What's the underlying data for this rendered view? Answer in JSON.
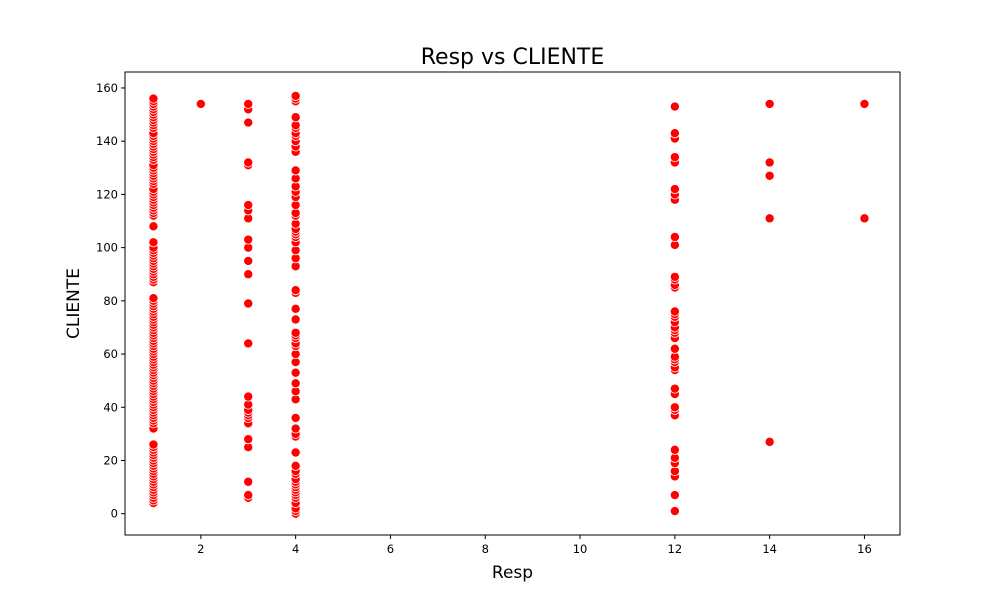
{
  "chart_data": {
    "type": "scatter",
    "title": "Resp vs CLIENTE",
    "xlabel": "Resp",
    "ylabel": "CLIENTE",
    "xlim": [
      0.4,
      16.75
    ],
    "ylim": [
      -8,
      166
    ],
    "xticks": [
      2,
      4,
      6,
      8,
      10,
      12,
      14,
      16
    ],
    "yticks": [
      0,
      20,
      40,
      60,
      80,
      100,
      120,
      140,
      160
    ],
    "grid": false,
    "legend": "none",
    "marker_color": "#ff0000",
    "marker_edge": "#ffffff",
    "series": [
      {
        "points": [
          [
            1,
            4
          ],
          [
            1,
            5
          ],
          [
            1,
            6
          ],
          [
            1,
            7
          ],
          [
            1,
            8
          ],
          [
            1,
            9
          ],
          [
            1,
            10
          ],
          [
            1,
            11
          ],
          [
            1,
            12
          ],
          [
            1,
            13
          ],
          [
            1,
            14
          ],
          [
            1,
            15
          ],
          [
            1,
            16
          ],
          [
            1,
            17
          ],
          [
            1,
            18
          ],
          [
            1,
            19
          ],
          [
            1,
            20
          ],
          [
            1,
            21
          ],
          [
            1,
            22
          ],
          [
            1,
            23
          ],
          [
            1,
            24
          ],
          [
            1,
            25
          ],
          [
            1,
            26
          ],
          [
            1,
            32
          ],
          [
            1,
            34
          ],
          [
            1,
            35
          ],
          [
            1,
            36
          ],
          [
            1,
            37
          ],
          [
            1,
            38
          ],
          [
            1,
            39
          ],
          [
            1,
            40
          ],
          [
            1,
            41
          ],
          [
            1,
            42
          ],
          [
            1,
            43
          ],
          [
            1,
            44
          ],
          [
            1,
            45
          ],
          [
            1,
            46
          ],
          [
            1,
            47
          ],
          [
            1,
            48
          ],
          [
            1,
            49
          ],
          [
            1,
            50
          ],
          [
            1,
            51
          ],
          [
            1,
            52
          ],
          [
            1,
            53
          ],
          [
            1,
            54
          ],
          [
            1,
            55
          ],
          [
            1,
            56
          ],
          [
            1,
            57
          ],
          [
            1,
            58
          ],
          [
            1,
            59
          ],
          [
            1,
            60
          ],
          [
            1,
            61
          ],
          [
            1,
            62
          ],
          [
            1,
            63
          ],
          [
            1,
            64
          ],
          [
            1,
            65
          ],
          [
            1,
            66
          ],
          [
            1,
            67
          ],
          [
            1,
            68
          ],
          [
            1,
            69
          ],
          [
            1,
            70
          ],
          [
            1,
            71
          ],
          [
            1,
            72
          ],
          [
            1,
            73
          ],
          [
            1,
            74
          ],
          [
            1,
            75
          ],
          [
            1,
            76
          ],
          [
            1,
            77
          ],
          [
            1,
            78
          ],
          [
            1,
            79
          ],
          [
            1,
            80
          ],
          [
            1,
            81
          ],
          [
            1,
            87
          ],
          [
            1,
            88
          ],
          [
            1,
            89
          ],
          [
            1,
            90
          ],
          [
            1,
            91
          ],
          [
            1,
            92
          ],
          [
            1,
            93
          ],
          [
            1,
            94
          ],
          [
            1,
            95
          ],
          [
            1,
            96
          ],
          [
            1,
            97
          ],
          [
            1,
            98
          ],
          [
            1,
            99
          ],
          [
            1,
            100
          ],
          [
            1,
            102
          ],
          [
            1,
            108
          ],
          [
            1,
            112
          ],
          [
            1,
            113
          ],
          [
            1,
            114
          ],
          [
            1,
            115
          ],
          [
            1,
            116
          ],
          [
            1,
            117
          ],
          [
            1,
            118
          ],
          [
            1,
            119
          ],
          [
            1,
            120
          ],
          [
            1,
            121
          ],
          [
            1,
            122
          ],
          [
            1,
            124
          ],
          [
            1,
            125
          ],
          [
            1,
            126
          ],
          [
            1,
            127
          ],
          [
            1,
            128
          ],
          [
            1,
            129
          ],
          [
            1,
            130
          ],
          [
            1,
            131
          ],
          [
            1,
            133
          ],
          [
            1,
            134
          ],
          [
            1,
            135
          ],
          [
            1,
            136
          ],
          [
            1,
            137
          ],
          [
            1,
            138
          ],
          [
            1,
            139
          ],
          [
            1,
            140
          ],
          [
            1,
            141
          ],
          [
            1,
            142
          ],
          [
            1,
            143
          ],
          [
            1,
            145
          ],
          [
            1,
            146
          ],
          [
            1,
            147
          ],
          [
            1,
            148
          ],
          [
            1,
            149
          ],
          [
            1,
            150
          ],
          [
            1,
            151
          ],
          [
            1,
            152
          ],
          [
            1,
            153
          ],
          [
            1,
            154
          ],
          [
            1,
            155
          ],
          [
            1,
            156
          ],
          [
            2,
            154
          ],
          [
            3,
            6
          ],
          [
            3,
            7
          ],
          [
            3,
            12
          ],
          [
            3,
            25
          ],
          [
            3,
            28
          ],
          [
            3,
            34
          ],
          [
            3,
            36
          ],
          [
            3,
            37
          ],
          [
            3,
            38
          ],
          [
            3,
            39
          ],
          [
            3,
            41
          ],
          [
            3,
            44
          ],
          [
            3,
            64
          ],
          [
            3,
            79
          ],
          [
            3,
            90
          ],
          [
            3,
            95
          ],
          [
            3,
            100
          ],
          [
            3,
            103
          ],
          [
            3,
            111
          ],
          [
            3,
            114
          ],
          [
            3,
            116
          ],
          [
            3,
            131
          ],
          [
            3,
            132
          ],
          [
            3,
            147
          ],
          [
            3,
            152
          ],
          [
            3,
            154
          ],
          [
            4,
            0
          ],
          [
            4,
            1
          ],
          [
            4,
            2
          ],
          [
            4,
            4
          ],
          [
            4,
            6
          ],
          [
            4,
            7
          ],
          [
            4,
            8
          ],
          [
            4,
            9
          ],
          [
            4,
            10
          ],
          [
            4,
            11
          ],
          [
            4,
            12
          ],
          [
            4,
            13
          ],
          [
            4,
            15
          ],
          [
            4,
            16
          ],
          [
            4,
            18
          ],
          [
            4,
            23
          ],
          [
            4,
            29
          ],
          [
            4,
            30
          ],
          [
            4,
            32
          ],
          [
            4,
            36
          ],
          [
            4,
            43
          ],
          [
            4,
            46
          ],
          [
            4,
            49
          ],
          [
            4,
            53
          ],
          [
            4,
            57
          ],
          [
            4,
            60
          ],
          [
            4,
            63
          ],
          [
            4,
            64
          ],
          [
            4,
            66
          ],
          [
            4,
            67
          ],
          [
            4,
            68
          ],
          [
            4,
            73
          ],
          [
            4,
            77
          ],
          [
            4,
            83
          ],
          [
            4,
            84
          ],
          [
            4,
            93
          ],
          [
            4,
            96
          ],
          [
            4,
            99
          ],
          [
            4,
            102
          ],
          [
            4,
            104
          ],
          [
            4,
            105
          ],
          [
            4,
            106
          ],
          [
            4,
            107
          ],
          [
            4,
            109
          ],
          [
            4,
            112
          ],
          [
            4,
            113
          ],
          [
            4,
            116
          ],
          [
            4,
            119
          ],
          [
            4,
            121
          ],
          [
            4,
            123
          ],
          [
            4,
            126
          ],
          [
            4,
            129
          ],
          [
            4,
            136
          ],
          [
            4,
            138
          ],
          [
            4,
            140
          ],
          [
            4,
            142
          ],
          [
            4,
            143
          ],
          [
            4,
            145
          ],
          [
            4,
            146
          ],
          [
            4,
            149
          ],
          [
            4,
            155
          ],
          [
            4,
            156
          ],
          [
            4,
            157
          ],
          [
            12,
            1
          ],
          [
            12,
            7
          ],
          [
            12,
            14
          ],
          [
            12,
            16
          ],
          [
            12,
            19
          ],
          [
            12,
            21
          ],
          [
            12,
            24
          ],
          [
            12,
            37
          ],
          [
            12,
            39
          ],
          [
            12,
            40
          ],
          [
            12,
            45
          ],
          [
            12,
            47
          ],
          [
            12,
            54
          ],
          [
            12,
            55
          ],
          [
            12,
            57
          ],
          [
            12,
            58
          ],
          [
            12,
            59
          ],
          [
            12,
            62
          ],
          [
            12,
            66
          ],
          [
            12,
            68
          ],
          [
            12,
            69
          ],
          [
            12,
            70
          ],
          [
            12,
            72
          ],
          [
            12,
            74
          ],
          [
            12,
            75
          ],
          [
            12,
            76
          ],
          [
            12,
            85
          ],
          [
            12,
            86
          ],
          [
            12,
            88
          ],
          [
            12,
            89
          ],
          [
            12,
            101
          ],
          [
            12,
            104
          ],
          [
            12,
            118
          ],
          [
            12,
            120
          ],
          [
            12,
            122
          ],
          [
            12,
            132
          ],
          [
            12,
            134
          ],
          [
            12,
            141
          ],
          [
            12,
            143
          ],
          [
            12,
            153
          ],
          [
            14,
            27
          ],
          [
            14,
            111
          ],
          [
            14,
            127
          ],
          [
            14,
            132
          ],
          [
            14,
            154
          ],
          [
            16,
            111
          ],
          [
            16,
            154
          ]
        ]
      }
    ]
  }
}
